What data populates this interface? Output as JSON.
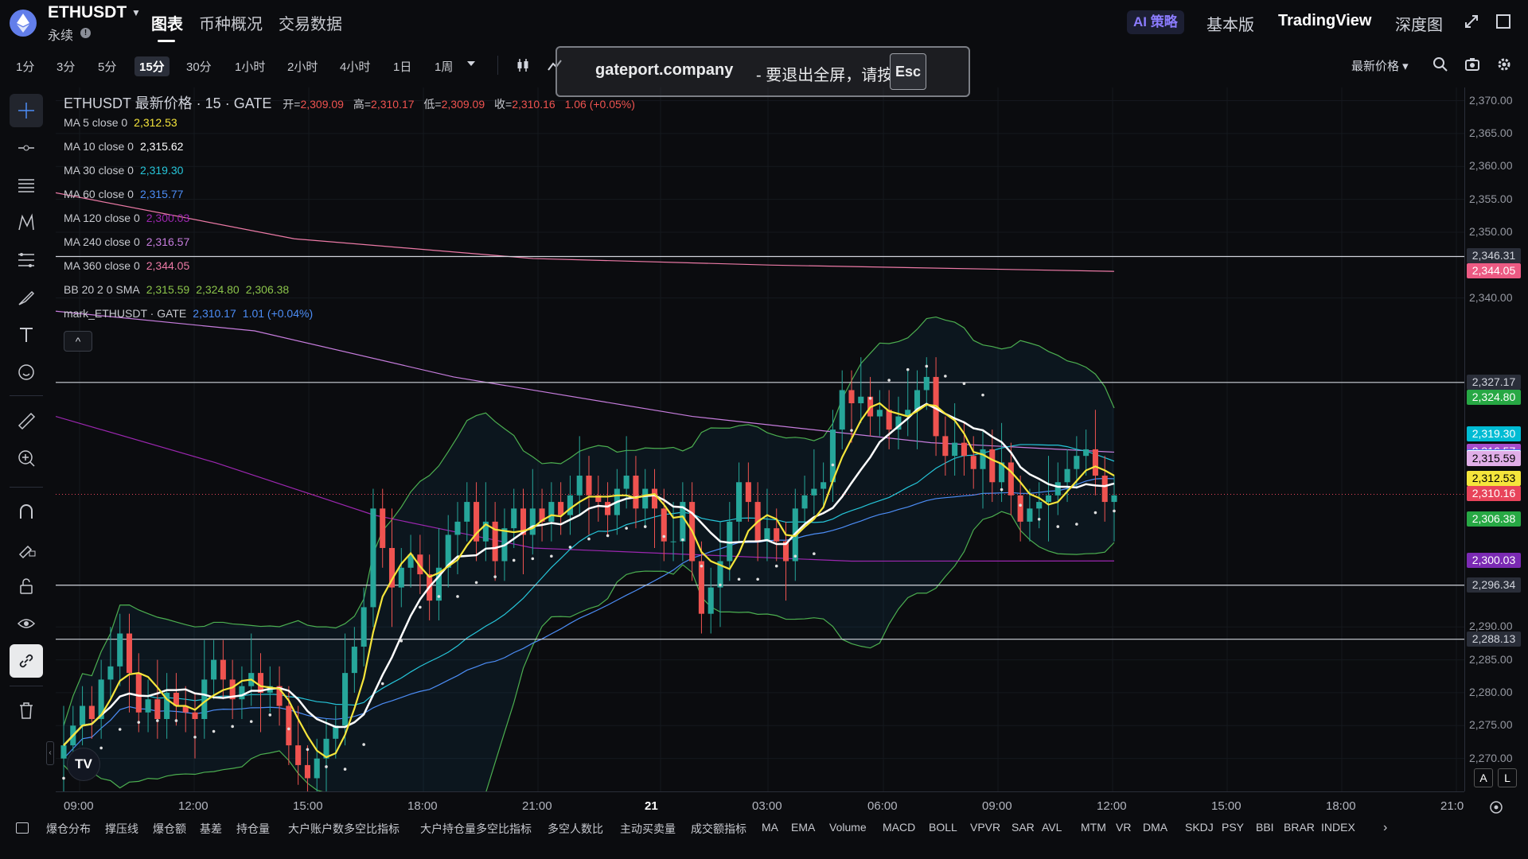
{
  "header": {
    "symbol": "ETHUSDT",
    "subtitle": "永续",
    "tabs": [
      "图表",
      "币种概况",
      "交易数据"
    ],
    "ai_button": "AI 策略",
    "right_tabs": [
      "基本版",
      "TradingView",
      "深度图"
    ]
  },
  "toolbar": {
    "timeframes": [
      "1分",
      "3分",
      "5分",
      "15分",
      "30分",
      "1小时",
      "2小时",
      "4小时",
      "1日",
      "1周"
    ],
    "active_timeframe": "15分",
    "price_mode": "最新价格"
  },
  "fullscreen_toast": {
    "domain": "gateport.company",
    "message": "- 要退出全屏，请按",
    "key": "Esc"
  },
  "legend": {
    "title": "ETHUSDT 最新价格 · 15 · GATE",
    "ohlc_open_label": "开=",
    "ohlc_open": "2,309.09",
    "ohlc_high_label": "高=",
    "ohlc_high": "2,310.17",
    "ohlc_low_label": "低=",
    "ohlc_low": "2,309.09",
    "ohlc_close_label": "收=",
    "ohlc_close": "2,310.16",
    "ohlc_change": "1.06 (+0.05%)",
    "indicators": [
      {
        "label": "MA 5 close 0",
        "values": [
          "2,312.53"
        ],
        "color": "#f5e53b"
      },
      {
        "label": "MA 10 close 0",
        "values": [
          "2,315.62"
        ],
        "color": "#ffffff"
      },
      {
        "label": "MA 30 close 0",
        "values": [
          "2,319.30"
        ],
        "color": "#26c6da"
      },
      {
        "label": "MA 60 close 0",
        "values": [
          "2,315.77"
        ],
        "color": "#4c8df6"
      },
      {
        "label": "MA 120 close 0",
        "values": [
          "2,300.03"
        ],
        "color": "#9c27b0"
      },
      {
        "label": "MA 240 close 0",
        "values": [
          "2,316.57"
        ],
        "color": "#c77dde"
      },
      {
        "label": "MA 360 close 0",
        "values": [
          "2,344.05"
        ],
        "color": "#ec7aa6"
      },
      {
        "label": "BB 20 2 0 SMA",
        "values": [
          "2,315.59",
          "2,324.80",
          "2,306.38"
        ],
        "color": "#8bc34a"
      },
      {
        "label": "mark_ETHUSDT · GATE",
        "values": [
          "2,310.17",
          "1.01 (+0.04%)"
        ],
        "color": "#4c8df6"
      }
    ]
  },
  "price_axis": {
    "ticks": [
      "2,370.00",
      "2,365.00",
      "2,360.00",
      "2,355.00",
      "2,350.00",
      "2,340.00",
      "2,290.00",
      "2,285.00",
      "2,280.00",
      "2,275.00",
      "2,270.00"
    ],
    "labels": [
      {
        "text": "2,346.31",
        "value": 2346.31,
        "bg": "#2a2e39",
        "fg": "#d1d4dc"
      },
      {
        "text": "2,344.05",
        "value": 2344.05,
        "bg": "#ec5a83",
        "fg": "#ffffff"
      },
      {
        "text": "2,327.17",
        "value": 2327.17,
        "bg": "#2a2e39",
        "fg": "#d1d4dc"
      },
      {
        "text": "2,324.80",
        "value": 2324.8,
        "bg": "#27a844",
        "fg": "#ffffff"
      },
      {
        "text": "2,319.30",
        "value": 2319.3,
        "bg": "#00bcd4",
        "fg": "#ffffff"
      },
      {
        "text": "2,316.57",
        "value": 2316.57,
        "bg": "#a64ccb",
        "fg": "#ffffff"
      },
      {
        "text": "2,315.77",
        "value": 2315.77,
        "bg": "#3d7ef5",
        "fg": "#ffffff"
      },
      {
        "text": "2,315.62",
        "value": 2315.62,
        "bg": "#ffffff",
        "fg": "#000000"
      },
      {
        "text": "2,315.59",
        "value": 2315.59,
        "bg": "#e0aee8",
        "fg": "#000000"
      },
      {
        "text": "2,312.53",
        "value": 2312.53,
        "bg": "#f5e53b",
        "fg": "#000000"
      },
      {
        "text": "2,310.17",
        "value": 2310.17,
        "bg": "#2f66e8",
        "fg": "#ffffff"
      },
      {
        "text": "2,310.16",
        "value": 2310.16,
        "bg": "#e8445a",
        "fg": "#ffffff"
      },
      {
        "text": "2,306.38",
        "value": 2306.38,
        "bg": "#27a844",
        "fg": "#ffffff"
      },
      {
        "text": "2,300.03",
        "value": 2300.03,
        "bg": "#7b2ab3",
        "fg": "#ffffff"
      },
      {
        "text": "2,296.34",
        "value": 2296.34,
        "bg": "#2a2e39",
        "fg": "#d1d4dc"
      },
      {
        "text": "2,288.13",
        "value": 2288.13,
        "bg": "#2a2e39",
        "fg": "#d1d4dc"
      }
    ]
  },
  "time_axis": {
    "ticks": [
      "09:00",
      "12:00",
      "15:00",
      "18:00",
      "21:00",
      "21",
      "03:00",
      "06:00",
      "09:00",
      "12:00",
      "15:00",
      "18:00",
      "21:0"
    ]
  },
  "horizontal_lines": [
    2346.31,
    2327.17,
    2296.34,
    2288.13
  ],
  "bottom_indicators": [
    "爆仓分布",
    "撑压线",
    "爆仓额",
    "基差",
    "持仓量",
    "大户账户数多空比指标",
    "大户持仓量多空比指标",
    "多空人数比",
    "主动买卖量",
    "成交额指标",
    "MA",
    "EMA",
    "Volume",
    "MACD",
    "BOLL",
    "VPVR",
    "SAR",
    "AVL",
    "MTM",
    "VR",
    "DMA",
    "SKDJ",
    "PSY",
    "BBI",
    "BRAR",
    "INDEX"
  ],
  "corner_buttons": [
    "A",
    "L"
  ],
  "tv_logo": "TV",
  "chart_data": {
    "type": "candlestick",
    "title": "ETHUSDT 最新价格 · 15 · GATE",
    "timeframe": "15m",
    "ylim": [
      2265,
      2372
    ],
    "x_categories": [
      "09:00",
      "12:00",
      "15:00",
      "18:00",
      "21:00",
      "21",
      "03:00",
      "06:00",
      "09:00",
      "12:00",
      "15:00",
      "18:00",
      "21:0"
    ],
    "closes": [
      2272,
      2275,
      2278,
      2276,
      2282,
      2284,
      2289,
      2283,
      2277,
      2279,
      2276,
      2280,
      2278,
      2277,
      2276,
      2282,
      2285,
      2282,
      2279,
      2281,
      2283,
      2280,
      2281,
      2278,
      2272,
      2269,
      2267,
      2270,
      2273,
      2275,
      2283,
      2287,
      2293,
      2308,
      2302,
      2296,
      2299,
      2301,
      2298,
      2294,
      2299,
      2304,
      2306,
      2309,
      2303,
      2306,
      2300,
      2305,
      2308,
      2304,
      2308,
      2306,
      2309,
      2307,
      2310,
      2313,
      2310,
      2309,
      2307,
      2311,
      2313,
      2308,
      2311,
      2308,
      2303,
      2303,
      2309,
      2300,
      2292,
      2296,
      2300,
      2306,
      2312,
      2309,
      2303,
      2305,
      2303,
      2300,
      2308,
      2310,
      2311,
      2312,
      2320,
      2326,
      2324,
      2325,
      2322,
      2323,
      2320,
      2322,
      2323,
      2326,
      2328,
      2319,
      2316,
      2318,
      2316,
      2314,
      2317,
      2312,
      2315,
      2310,
      2306,
      2308,
      2309,
      2310,
      2312,
      2314,
      2316,
      2317,
      2313,
      2309,
      2310
    ]
  }
}
